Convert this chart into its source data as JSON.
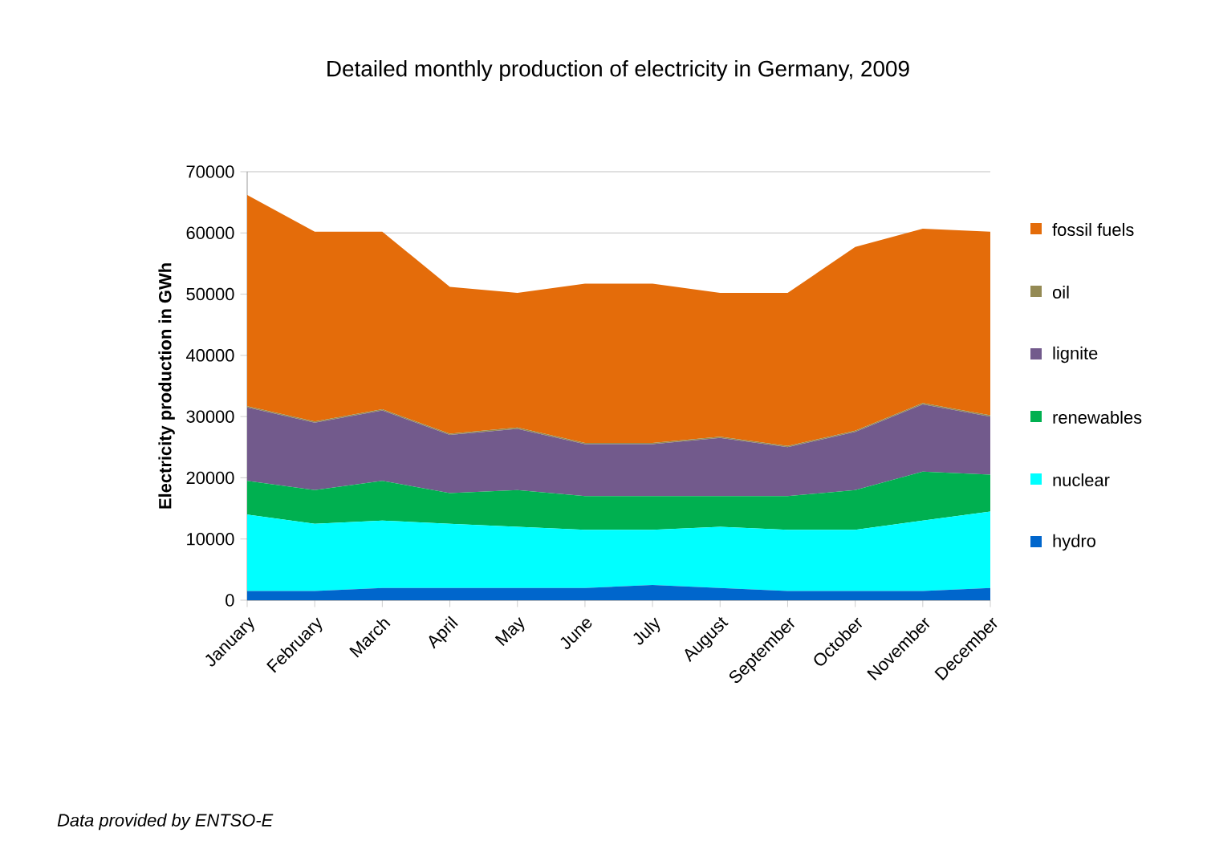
{
  "chart_data": {
    "type": "area",
    "title": "Detailed monthly production of electricity in Germany, 2009",
    "ylabel": "Electricity production in GWh",
    "categories": [
      "January",
      "February",
      "March",
      "April",
      "May",
      "June",
      "July",
      "August",
      "September",
      "October",
      "November",
      "December"
    ],
    "stacked": true,
    "series": [
      {
        "name": "hydro",
        "color": "#0066cc",
        "values": [
          1500,
          1500,
          2000,
          2000,
          2000,
          2000,
          2500,
          2000,
          1500,
          1500,
          1500,
          2000
        ]
      },
      {
        "name": "nuclear",
        "color": "#00ffff",
        "values": [
          12500,
          11000,
          11000,
          10500,
          10000,
          9500,
          9000,
          10000,
          10000,
          10000,
          11500,
          12500
        ]
      },
      {
        "name": "renewables",
        "color": "#00b050",
        "values": [
          5500,
          5500,
          6500,
          5000,
          6000,
          5500,
          5500,
          5000,
          5500,
          6500,
          8000,
          6000
        ]
      },
      {
        "name": "lignite",
        "color": "#725a8c",
        "values": [
          12000,
          11000,
          11500,
          9500,
          10000,
          8500,
          8500,
          9500,
          8000,
          9500,
          11000,
          9500
        ]
      },
      {
        "name": "oil",
        "color": "#948a54",
        "values": [
          200,
          200,
          200,
          200,
          200,
          200,
          200,
          200,
          200,
          200,
          200,
          200
        ]
      },
      {
        "name": "fossil fuels",
        "color": "#e46c0a",
        "values": [
          34500,
          31000,
          29000,
          24000,
          22000,
          26000,
          26000,
          23500,
          25000,
          30000,
          28500,
          30000
        ]
      }
    ],
    "ylim": [
      0,
      70000
    ],
    "yticks": [
      0,
      10000,
      20000,
      30000,
      40000,
      50000,
      60000,
      70000
    ],
    "grid": "y",
    "legend": "right",
    "annotations": [
      "Data provided by ENTSO-E"
    ]
  }
}
